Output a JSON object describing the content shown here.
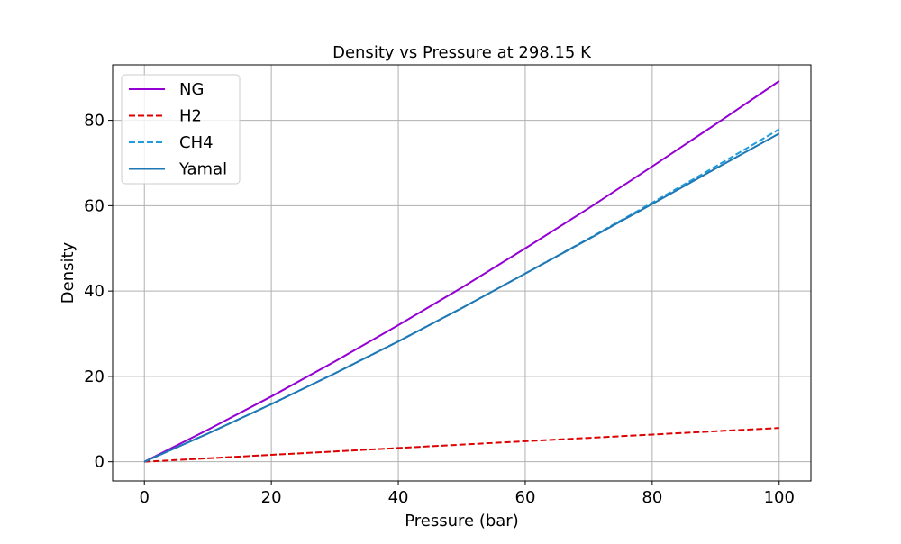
{
  "chart_data": {
    "type": "line",
    "title": "Density vs Pressure at 298.15 K",
    "xlabel": "Pressure (bar)",
    "ylabel": "Density",
    "xlim": [
      -5,
      105
    ],
    "ylim": [
      -4.5,
      93
    ],
    "xticks": [
      0,
      20,
      40,
      60,
      80,
      100
    ],
    "yticks": [
      0,
      20,
      40,
      60,
      80
    ],
    "xtick_labels": [
      "0",
      "20",
      "40",
      "60",
      "80",
      "100"
    ],
    "ytick_labels": [
      "0",
      "20",
      "40",
      "60",
      "80"
    ],
    "grid": true,
    "legend_position": "upper-left",
    "x": [
      0,
      10,
      20,
      30,
      40,
      50,
      60,
      70,
      80,
      90,
      100
    ],
    "series": [
      {
        "name": "NG",
        "color": "#9400d3",
        "dash": "solid",
        "values": [
          0,
          7.5,
          15.3,
          23.5,
          32.0,
          40.8,
          50.0,
          59.4,
          69.2,
          79.1,
          89.2
        ]
      },
      {
        "name": "H2",
        "color": "#dd0000",
        "dash": "dashed",
        "values": [
          0,
          0.81,
          1.62,
          2.42,
          3.22,
          4.02,
          4.81,
          5.59,
          6.37,
          7.15,
          7.92
        ]
      },
      {
        "name": "CH4",
        "color": "#1f9bde",
        "dash": "dashed",
        "values": [
          0,
          6.6,
          13.5,
          20.7,
          28.2,
          36.0,
          44.1,
          52.3,
          60.7,
          69.2,
          77.9
        ]
      },
      {
        "name": "Yamal",
        "color": "#1f77b4",
        "dash": "solid",
        "values": [
          0,
          6.6,
          13.5,
          20.7,
          28.2,
          36.0,
          44.1,
          52.2,
          60.4,
          68.7,
          76.9
        ]
      }
    ]
  }
}
